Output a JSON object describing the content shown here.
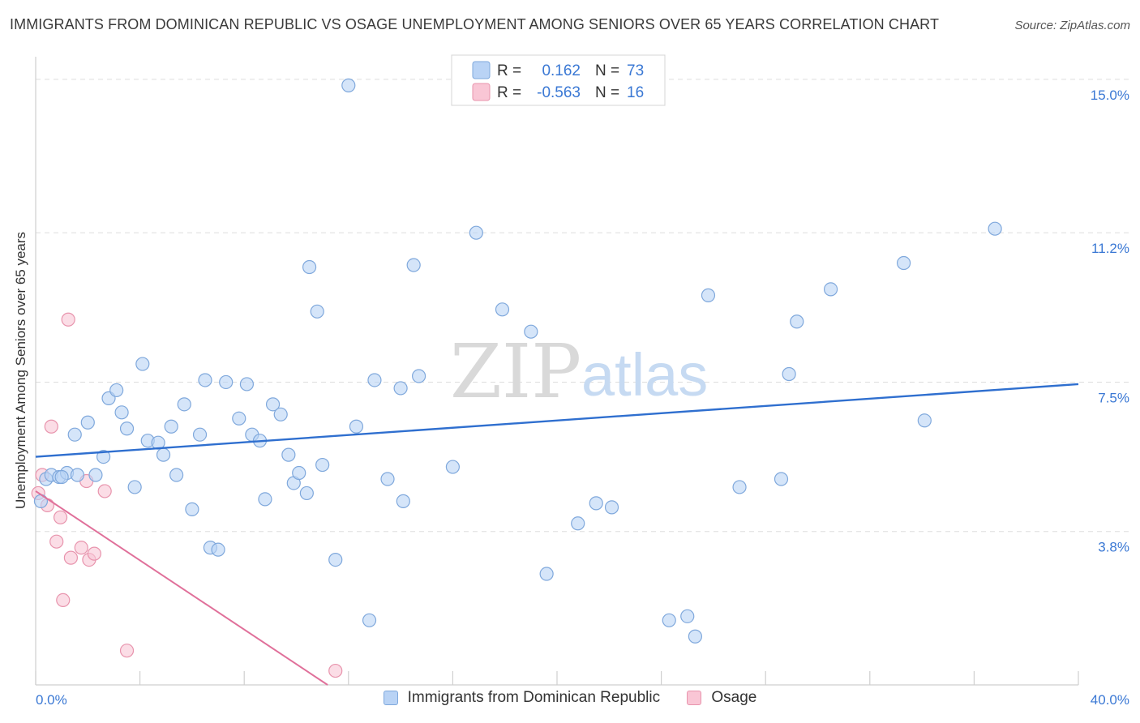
{
  "title": "IMMIGRANTS FROM DOMINICAN REPUBLIC VS OSAGE UNEMPLOYMENT AMONG SENIORS OVER 65 YEARS CORRELATION CHART",
  "source": "Source: ZipAtlas.com",
  "watermark": {
    "zip": "ZIP",
    "atlas": "atlas"
  },
  "colors": {
    "blue_fill": "#b9d3f5",
    "blue_stroke": "#7fa8dc",
    "blue_line": "#2f6fcf",
    "pink_fill": "#f9c6d5",
    "pink_stroke": "#e894ad",
    "pink_line": "#e0709a",
    "value_text": "#3a78d4",
    "grid": "#dddddd"
  },
  "legend": {
    "rows": [
      {
        "r_label": "R =",
        "r_value": "0.162",
        "n_label": "N =",
        "n_value": "73"
      },
      {
        "r_label": "R =",
        "r_value": "-0.563",
        "n_label": "N =",
        "n_value": "16"
      }
    ]
  },
  "chart_data": {
    "type": "scatter",
    "title": "IMMIGRANTS FROM DOMINICAN REPUBLIC VS OSAGE UNEMPLOYMENT AMONG SENIORS OVER 65 YEARS CORRELATION CHART",
    "xlabel": "",
    "ylabel": "Unemployment Among Seniors over 65 years",
    "xlim": [
      0,
      40
    ],
    "ylim": [
      0,
      15.4
    ],
    "x_tick_labels": [
      "0.0%",
      "40.0%"
    ],
    "y_ticks": [
      3.8,
      7.5,
      11.2,
      15.0
    ],
    "y_tick_labels": [
      "3.8%",
      "7.5%",
      "11.2%",
      "15.0%"
    ],
    "grid": true,
    "series": [
      {
        "name": "Immigrants from Dominican Republic",
        "r": 0.162,
        "n": 73,
        "trend": {
          "x": [
            0,
            40
          ],
          "y": [
            5.65,
            7.45
          ]
        },
        "points": [
          [
            0.4,
            5.1
          ],
          [
            0.6,
            5.2
          ],
          [
            0.9,
            5.15
          ],
          [
            1.2,
            5.25
          ],
          [
            1.5,
            6.2
          ],
          [
            1.6,
            5.2
          ],
          [
            2.0,
            6.5
          ],
          [
            2.3,
            5.2
          ],
          [
            2.6,
            5.65
          ],
          [
            2.8,
            7.1
          ],
          [
            3.1,
            7.3
          ],
          [
            3.3,
            6.75
          ],
          [
            3.5,
            6.35
          ],
          [
            3.8,
            4.9
          ],
          [
            4.1,
            7.95
          ],
          [
            4.3,
            6.05
          ],
          [
            4.7,
            6.0
          ],
          [
            4.9,
            5.7
          ],
          [
            5.2,
            6.4
          ],
          [
            5.4,
            5.2
          ],
          [
            5.7,
            6.95
          ],
          [
            6.0,
            4.35
          ],
          [
            6.3,
            6.2
          ],
          [
            6.5,
            7.55
          ],
          [
            6.7,
            3.4
          ],
          [
            7.0,
            3.35
          ],
          [
            7.3,
            7.5
          ],
          [
            7.8,
            6.6
          ],
          [
            8.1,
            7.45
          ],
          [
            8.3,
            6.2
          ],
          [
            8.6,
            6.05
          ],
          [
            8.8,
            4.6
          ],
          [
            9.1,
            6.95
          ],
          [
            9.4,
            6.7
          ],
          [
            9.7,
            5.7
          ],
          [
            9.9,
            5.0
          ],
          [
            10.1,
            5.25
          ],
          [
            10.4,
            4.75
          ],
          [
            10.5,
            10.35
          ],
          [
            10.8,
            9.25
          ],
          [
            11.0,
            5.45
          ],
          [
            11.5,
            3.1
          ],
          [
            12.0,
            14.85
          ],
          [
            12.3,
            6.4
          ],
          [
            12.8,
            1.6
          ],
          [
            13.0,
            7.55
          ],
          [
            13.5,
            5.1
          ],
          [
            14.0,
            7.35
          ],
          [
            14.1,
            4.55
          ],
          [
            14.5,
            10.4
          ],
          [
            14.7,
            7.65
          ],
          [
            16.0,
            5.4
          ],
          [
            16.9,
            11.2
          ],
          [
            17.9,
            9.3
          ],
          [
            19.0,
            8.75
          ],
          [
            19.6,
            2.75
          ],
          [
            20.8,
            4.0
          ],
          [
            21.5,
            4.5
          ],
          [
            22.1,
            4.4
          ],
          [
            24.3,
            1.6
          ],
          [
            25.0,
            1.7
          ],
          [
            25.3,
            1.2
          ],
          [
            25.8,
            9.65
          ],
          [
            27.0,
            4.9
          ],
          [
            28.6,
            5.1
          ],
          [
            28.9,
            7.7
          ],
          [
            29.2,
            9.0
          ],
          [
            30.5,
            9.8
          ],
          [
            33.3,
            10.45
          ],
          [
            34.1,
            6.55
          ],
          [
            36.8,
            11.3
          ],
          [
            0.2,
            4.55
          ],
          [
            1.0,
            5.15
          ]
        ]
      },
      {
        "name": "Osage",
        "r": -0.563,
        "n": 16,
        "trend": {
          "x": [
            0,
            11.2
          ],
          "y": [
            4.8,
            0
          ]
        },
        "points": [
          [
            0.1,
            4.75
          ],
          [
            0.25,
            5.2
          ],
          [
            0.45,
            4.45
          ],
          [
            0.6,
            6.4
          ],
          [
            0.8,
            3.55
          ],
          [
            0.95,
            4.15
          ],
          [
            1.05,
            2.1
          ],
          [
            1.25,
            9.05
          ],
          [
            1.35,
            3.15
          ],
          [
            1.75,
            3.4
          ],
          [
            1.95,
            5.05
          ],
          [
            2.05,
            3.1
          ],
          [
            2.25,
            3.25
          ],
          [
            2.65,
            4.8
          ],
          [
            3.5,
            0.85
          ],
          [
            11.5,
            0.35
          ]
        ]
      }
    ]
  },
  "bottom_legend": [
    {
      "label": "Immigrants from Dominican Republic"
    },
    {
      "label": "Osage"
    }
  ]
}
